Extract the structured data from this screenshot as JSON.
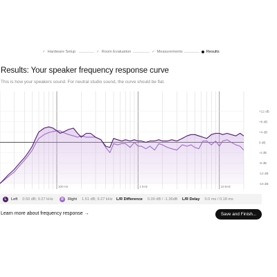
{
  "stepper": {
    "steps": [
      {
        "label": "Hardware Setup",
        "state": "done",
        "glyph": "✓"
      },
      {
        "label": "Room Evaluation",
        "state": "done",
        "glyph": "✓"
      },
      {
        "label": "Measurements",
        "state": "done",
        "glyph": "✓"
      },
      {
        "label": "Results",
        "state": "current",
        "glyph": ""
      }
    ]
  },
  "header": {
    "title": "Results: Your speaker frequency response curve",
    "subtitle": "This is how your speakers sound. For neutral studio sound, the curve should be flat."
  },
  "chart_data": {
    "type": "line",
    "xlabel": "",
    "ylabel": "",
    "x_scale": "log",
    "xlim": [
      20,
      20000
    ],
    "ylim": [
      -16,
      16
    ],
    "grid": true,
    "x_tick_labels": [
      {
        "value": 100,
        "label": "100 Hz"
      },
      {
        "value": 1000,
        "label": "1 kHz"
      },
      {
        "value": 10000,
        "label": "10 kHz"
      }
    ],
    "y_tick_labels": [
      {
        "value": 12,
        "label": "+12 dB"
      },
      {
        "value": 8,
        "label": "+8 dB"
      },
      {
        "value": 4,
        "label": "+4 dB"
      },
      {
        "value": 0,
        "label": "0 dB"
      },
      {
        "value": -4,
        "label": "-4 dB"
      },
      {
        "value": -8,
        "label": "-8 dB"
      },
      {
        "value": -12,
        "label": "-12 dB"
      },
      {
        "value": -16,
        "label": "-16 dB"
      }
    ],
    "x": [
      20,
      25,
      30,
      35,
      40,
      45,
      50,
      55,
      60,
      70,
      80,
      90,
      100,
      110,
      120,
      140,
      160,
      180,
      200,
      230,
      260,
      300,
      350,
      400,
      450,
      500,
      560,
      630,
      700,
      800,
      900,
      1000,
      1100,
      1250,
      1400,
      1600,
      1800,
      2000,
      2300,
      2600,
      3000,
      3500,
      4000,
      4500,
      5000,
      5600,
      6300,
      7000,
      8000,
      9000,
      10000,
      11000,
      12500,
      14000,
      16000,
      18000,
      20000
    ],
    "series": [
      {
        "name": "Left",
        "color": "#4a1f5e",
        "values": [
          -16,
          -12.8,
          -10.5,
          -8,
          -6,
          -3.8,
          -1.5,
          1.5,
          4,
          5.5,
          6,
          5.5,
          4.5,
          3.5,
          4,
          5,
          5.5,
          3.5,
          2,
          3.5,
          3.5,
          2,
          1,
          -1.5,
          -2,
          1.5,
          1,
          0.5,
          1,
          0.5,
          1,
          0.5,
          0.5,
          0,
          0.5,
          0.5,
          1,
          0.5,
          0.5,
          1,
          0.5,
          1.5,
          2.5,
          3,
          3,
          2.5,
          2,
          1.5,
          3,
          3.5,
          3.5,
          3,
          3.5,
          3,
          2.5,
          3.5,
          2.5
        ]
      },
      {
        "name": "Right",
        "color": "#a06cc4",
        "values": [
          -16,
          -13.5,
          -11.5,
          -9,
          -7,
          -5,
          -3,
          -0.5,
          1.5,
          3,
          3.8,
          4.2,
          4.5,
          4.5,
          3.8,
          3,
          2.5,
          2,
          2.5,
          2,
          2,
          2,
          1,
          -2,
          -4,
          -0.5,
          -1,
          -0.5,
          -0.5,
          -2,
          0,
          -1.5,
          -1.5,
          -2.5,
          -1.5,
          -3,
          -0.5,
          -1,
          -2,
          -2.5,
          -3,
          -1,
          -1.5,
          -1,
          -2,
          -2.5,
          0.5,
          0.5,
          -1,
          0.5,
          -1.5,
          0.5,
          1,
          0,
          -1,
          -1.5,
          -3
        ]
      }
    ]
  },
  "legend": {
    "left": {
      "badge": "L",
      "name": "Left",
      "value": "0.50 dB; 9.27 kHz",
      "color": "#4a1f5e"
    },
    "right": {
      "badge": "R",
      "name": "Right",
      "value": "1.51 dB; 9.27 kHz",
      "color": "#a06cc4"
    },
    "diff": {
      "label": "L/R Difference",
      "value": "0.00 dB / -1.36dB"
    },
    "delay": {
      "label": "L/R Delay",
      "value": "0.0 ms / 0.18 ms"
    }
  },
  "footer": {
    "learn_more": "Learn more about frequency response →",
    "primary_button": "Save and Finish..."
  }
}
